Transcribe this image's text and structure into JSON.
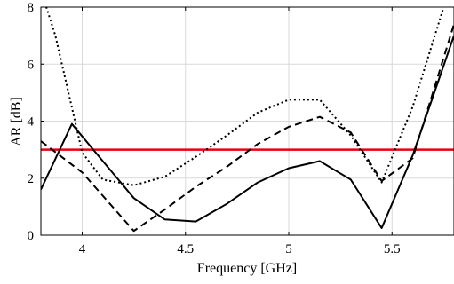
{
  "chart_data": {
    "type": "line",
    "title": "",
    "xlabel": "Frequency [GHz]",
    "ylabel": "AR [dB]",
    "xlim": [
      3.8,
      5.8
    ],
    "ylim": [
      0,
      8
    ],
    "xticks": [
      4,
      4.5,
      5,
      5.5
    ],
    "xtick_labels": [
      "4",
      "4.5",
      "5",
      "5.5"
    ],
    "yticks": [
      0,
      2,
      4,
      6,
      8
    ],
    "ytick_labels": [
      "0",
      "2",
      "4",
      "6",
      "8"
    ],
    "grid": true,
    "legend": "none",
    "threshold": {
      "y": 3,
      "color": "#e8000b"
    },
    "series": [
      {
        "style": "solid",
        "color": "#000000",
        "x": [
          3.8,
          3.95,
          4.1,
          4.25,
          4.4,
          4.55,
          4.7,
          4.85,
          5.0,
          5.15,
          5.3,
          5.45,
          5.6,
          5.8
        ],
        "y": [
          1.6,
          3.9,
          2.6,
          1.3,
          0.55,
          0.48,
          1.1,
          1.85,
          2.35,
          2.6,
          1.95,
          0.25,
          2.8,
          7.0
        ]
      },
      {
        "style": "dashed",
        "color": "#000000",
        "x": [
          3.8,
          4.0,
          4.25,
          4.4,
          4.55,
          4.7,
          4.85,
          5.0,
          5.15,
          5.3,
          5.45,
          5.6,
          5.8
        ],
        "y": [
          3.3,
          2.2,
          0.15,
          0.9,
          1.7,
          2.4,
          3.2,
          3.8,
          4.15,
          3.6,
          1.9,
          2.7,
          7.4
        ]
      },
      {
        "style": "dotted",
        "color": "#000000",
        "x": [
          3.8,
          3.87,
          4.0,
          4.1,
          4.25,
          4.4,
          4.55,
          4.7,
          4.85,
          5.0,
          5.15,
          5.3,
          5.45,
          5.6,
          5.75,
          5.8
        ],
        "y": [
          8.6,
          7.0,
          2.9,
          1.95,
          1.75,
          2.05,
          2.75,
          3.5,
          4.3,
          4.75,
          4.75,
          3.5,
          1.85,
          4.5,
          8.0,
          8.6
        ]
      }
    ]
  }
}
